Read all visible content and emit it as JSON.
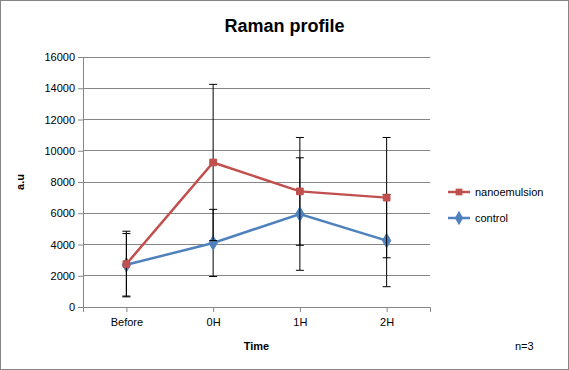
{
  "chart_data": {
    "type": "line",
    "title": "Raman profile",
    "x_label": "Time",
    "y_label": "a.u",
    "annotation": "n=3",
    "categories": [
      "Before",
      "0H",
      "1H",
      "2H"
    ],
    "series": [
      {
        "name": "nanoemulsion",
        "color": "#c0504d",
        "marker": "square",
        "values": [
          2750,
          9250,
          7400,
          7000
        ],
        "errors": [
          2100,
          5000,
          3450,
          3850
        ]
      },
      {
        "name": "control",
        "color": "#4f81bd",
        "marker": "diamond",
        "values": [
          2700,
          4100,
          5950,
          4250
        ],
        "errors": [
          2000,
          2150,
          3600,
          2950
        ]
      }
    ],
    "ylim": [
      0,
      16000
    ],
    "yticks": [
      0,
      2000,
      4000,
      6000,
      8000,
      10000,
      12000,
      14000,
      16000
    ],
    "grid": true,
    "legend": "right"
  }
}
